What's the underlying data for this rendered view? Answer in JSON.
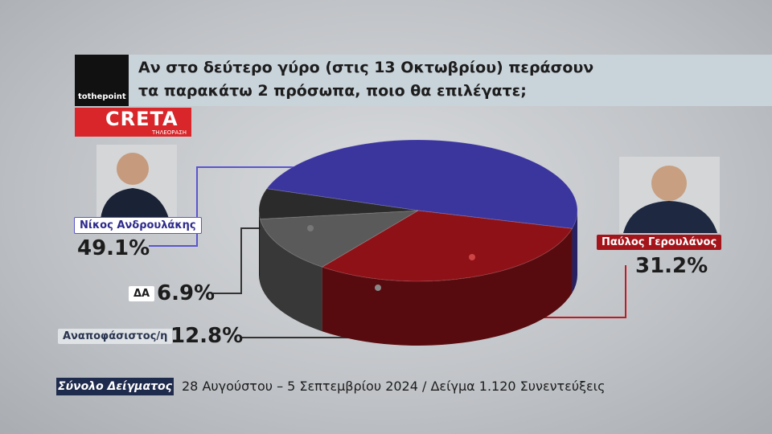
{
  "branding": {
    "agency": "tothepoint",
    "channel": "CRETA",
    "channel_sub": "ΤΗΛΕΟΡΑΣΗ"
  },
  "chart_data": {
    "type": "pie",
    "title": "Αν στο δεύτερο γύρο (στις 13 Οκτωβρίου) περάσουν τα παρακάτω 2 πρόσωπα, ποιο θα επιλέγατε;",
    "categories": [
      "Νίκος Ανδρουλάκης",
      "Παύλος Γερουλάνος",
      "Αναποφάσιστος/η",
      "ΔΑ"
    ],
    "values": [
      49.1,
      31.2,
      12.8,
      6.9
    ],
    "value_labels": [
      "49.1%",
      "31.2%",
      "12.8%",
      "6.9%"
    ],
    "colors": [
      "#3b359e",
      "#8e1117",
      "#5a5a5a",
      "#2b2b2b"
    ]
  },
  "footer": {
    "label": "Σύνολο Δείγματος",
    "text": "28 Αυγούστου – 5 Σεπτεμβρίου 2024  / Δείγμα 1.120 Συνεντεύξεις"
  }
}
